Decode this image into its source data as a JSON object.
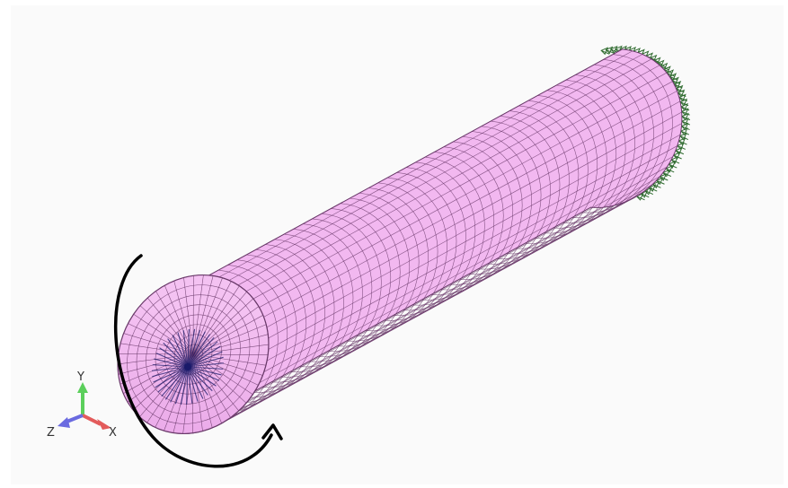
{
  "viewport": {
    "background": "#fafafa"
  },
  "model": {
    "type": "meshed-cylinder",
    "surface_color": "#f2b8f0",
    "mesh_line_color": "#6a3a6a",
    "center_node_color": "#1a1a6a",
    "constraint_color": "#2f6b2f"
  },
  "load_indicator": {
    "icon": "curved-arrow-icon",
    "color": "#000000"
  },
  "triad": {
    "x_label": "X",
    "y_label": "Y",
    "z_label": "Z",
    "x_color": "#e35b5b",
    "y_color": "#5bcf5b",
    "z_color": "#6a6ae0"
  }
}
